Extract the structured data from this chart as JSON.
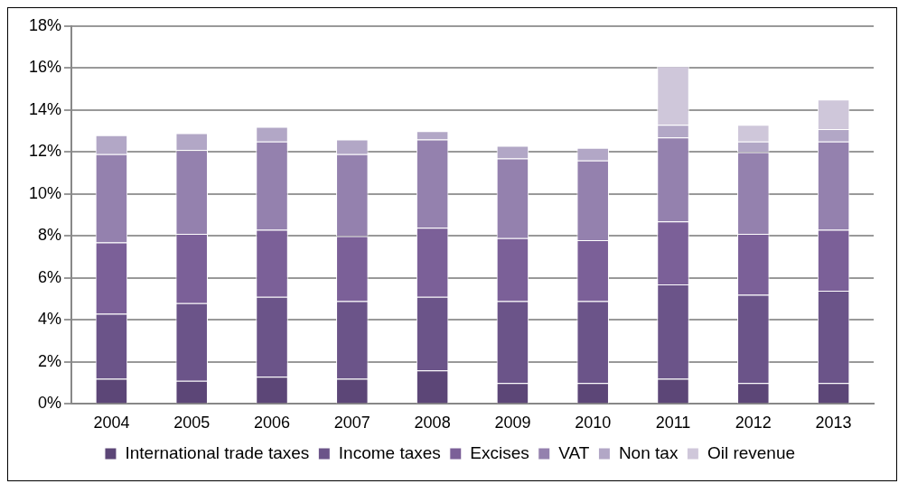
{
  "chart_data": {
    "type": "bar",
    "stacked": true,
    "categories": [
      "2004",
      "2005",
      "2006",
      "2007",
      "2008",
      "2009",
      "2010",
      "2011",
      "2012",
      "2013"
    ],
    "series": [
      {
        "name": "International trade taxes",
        "color": "#5c4677",
        "values": [
          1.2,
          1.1,
          1.3,
          1.2,
          1.6,
          1.0,
          1.0,
          1.2,
          1.0,
          1.0
        ]
      },
      {
        "name": "Income taxes",
        "color": "#6b5489",
        "values": [
          3.1,
          3.7,
          3.8,
          3.7,
          3.5,
          3.9,
          3.9,
          4.5,
          4.2,
          4.4
        ]
      },
      {
        "name": "Excises",
        "color": "#7b6098",
        "values": [
          3.4,
          3.3,
          3.2,
          3.1,
          3.3,
          3.0,
          2.9,
          3.0,
          2.9,
          2.9
        ]
      },
      {
        "name": "VAT",
        "color": "#9481ae",
        "values": [
          4.2,
          4.0,
          4.2,
          3.9,
          4.2,
          3.8,
          3.8,
          4.0,
          3.9,
          4.2
        ]
      },
      {
        "name": "Non tax",
        "color": "#b2a7c6",
        "values": [
          0.9,
          0.8,
          0.7,
          0.7,
          0.4,
          0.6,
          0.6,
          0.6,
          0.5,
          0.6
        ]
      },
      {
        "name": "Oil revenue",
        "color": "#cfc7da",
        "values": [
          null,
          null,
          null,
          null,
          null,
          null,
          null,
          2.8,
          0.8,
          1.4
        ]
      }
    ],
    "ylim": [
      0,
      18
    ],
    "yticks": [
      {
        "value": 0,
        "label": "0%"
      },
      {
        "value": 2,
        "label": "2%"
      },
      {
        "value": 4,
        "label": "4%"
      },
      {
        "value": 6,
        "label": "6%"
      },
      {
        "value": 8,
        "label": "8%"
      },
      {
        "value": 10,
        "label": "10%"
      },
      {
        "value": 12,
        "label": "12%"
      },
      {
        "value": 14,
        "label": "14%"
      },
      {
        "value": 16,
        "label": "16%"
      },
      {
        "value": 18,
        "label": "18%"
      }
    ],
    "grid": "y",
    "legend": "bottom"
  }
}
